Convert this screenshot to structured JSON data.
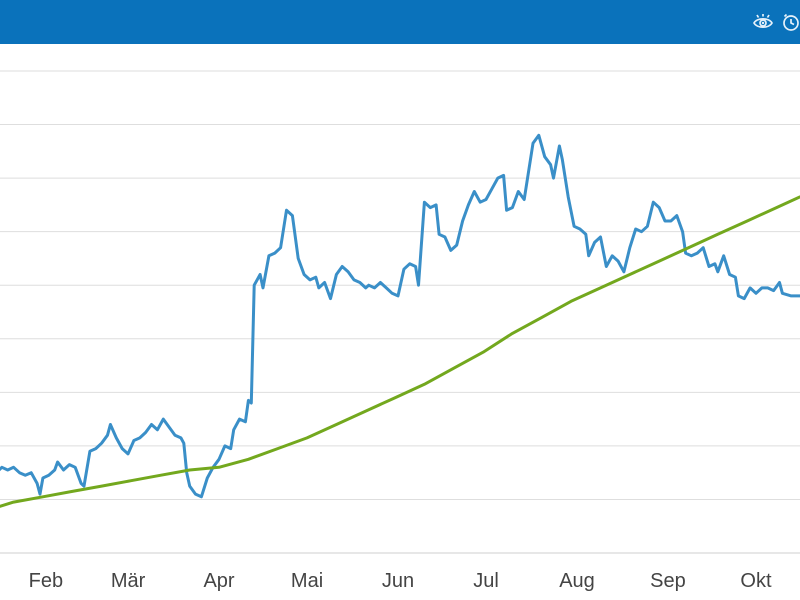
{
  "header": {
    "background": "#0a72bb",
    "icons": [
      "eye-icon",
      "alarm-clock-icon"
    ]
  },
  "chart_data": {
    "type": "line",
    "grid": true,
    "legend": "none",
    "x_tick_labels": [
      "Feb",
      "Mär",
      "Apr",
      "Mai",
      "Jun",
      "Jul",
      "Aug",
      "Sep",
      "Okt"
    ],
    "x_tick_days": [
      31,
      59,
      90,
      120,
      151,
      181,
      212,
      243,
      273
    ],
    "xlim": [
      14,
      288
    ],
    "ylim": [
      0,
      9
    ],
    "series": [
      {
        "color": "#3a8fc8",
        "points": [
          [
            14,
            1.5
          ],
          [
            16,
            1.6
          ],
          [
            18,
            1.55
          ],
          [
            20,
            1.6
          ],
          [
            22,
            1.5
          ],
          [
            24,
            1.45
          ],
          [
            26,
            1.5
          ],
          [
            28,
            1.3
          ],
          [
            29,
            1.1
          ],
          [
            30,
            1.4
          ],
          [
            32,
            1.45
          ],
          [
            34,
            1.55
          ],
          [
            35,
            1.7
          ],
          [
            37,
            1.55
          ],
          [
            39,
            1.65
          ],
          [
            41,
            1.6
          ],
          [
            43,
            1.3
          ],
          [
            44,
            1.25
          ],
          [
            46,
            1.9
          ],
          [
            48,
            1.95
          ],
          [
            50,
            2.05
          ],
          [
            52,
            2.2
          ],
          [
            53,
            2.4
          ],
          [
            55,
            2.15
          ],
          [
            57,
            1.95
          ],
          [
            59,
            1.85
          ],
          [
            61,
            2.1
          ],
          [
            63,
            2.15
          ],
          [
            65,
            2.25
          ],
          [
            67,
            2.4
          ],
          [
            69,
            2.3
          ],
          [
            71,
            2.5
          ],
          [
            73,
            2.35
          ],
          [
            75,
            2.2
          ],
          [
            77,
            2.15
          ],
          [
            78,
            2.05
          ],
          [
            79,
            1.5
          ],
          [
            80,
            1.25
          ],
          [
            82,
            1.1
          ],
          [
            84,
            1.05
          ],
          [
            86,
            1.4
          ],
          [
            88,
            1.6
          ],
          [
            90,
            1.75
          ],
          [
            92,
            2.0
          ],
          [
            94,
            1.95
          ],
          [
            95,
            2.3
          ],
          [
            97,
            2.5
          ],
          [
            99,
            2.45
          ],
          [
            100,
            2.85
          ],
          [
            101,
            2.8
          ],
          [
            102,
            5.0
          ],
          [
            104,
            5.2
          ],
          [
            105,
            4.95
          ],
          [
            107,
            5.55
          ],
          [
            109,
            5.6
          ],
          [
            111,
            5.7
          ],
          [
            113,
            6.4
          ],
          [
            115,
            6.3
          ],
          [
            117,
            5.5
          ],
          [
            119,
            5.2
          ],
          [
            121,
            5.1
          ],
          [
            123,
            5.15
          ],
          [
            124,
            4.95
          ],
          [
            126,
            5.05
          ],
          [
            128,
            4.75
          ],
          [
            130,
            5.2
          ],
          [
            132,
            5.35
          ],
          [
            134,
            5.25
          ],
          [
            136,
            5.1
          ],
          [
            138,
            5.05
          ],
          [
            140,
            4.95
          ],
          [
            141,
            5.0
          ],
          [
            143,
            4.95
          ],
          [
            145,
            5.05
          ],
          [
            147,
            4.95
          ],
          [
            149,
            4.85
          ],
          [
            151,
            4.8
          ],
          [
            153,
            5.3
          ],
          [
            155,
            5.4
          ],
          [
            157,
            5.35
          ],
          [
            158,
            5.0
          ],
          [
            160,
            6.55
          ],
          [
            162,
            6.45
          ],
          [
            164,
            6.5
          ],
          [
            165,
            5.95
          ],
          [
            167,
            5.9
          ],
          [
            169,
            5.65
          ],
          [
            171,
            5.75
          ],
          [
            173,
            6.2
          ],
          [
            175,
            6.5
          ],
          [
            177,
            6.75
          ],
          [
            179,
            6.55
          ],
          [
            181,
            6.6
          ],
          [
            183,
            6.8
          ],
          [
            185,
            7.0
          ],
          [
            187,
            7.05
          ],
          [
            188,
            6.4
          ],
          [
            190,
            6.45
          ],
          [
            192,
            6.75
          ],
          [
            194,
            6.6
          ],
          [
            197,
            7.65
          ],
          [
            199,
            7.8
          ],
          [
            201,
            7.4
          ],
          [
            203,
            7.25
          ],
          [
            204,
            7.0
          ],
          [
            206,
            7.6
          ],
          [
            207,
            7.35
          ],
          [
            209,
            6.65
          ],
          [
            211,
            6.1
          ],
          [
            213,
            6.05
          ],
          [
            215,
            5.95
          ],
          [
            216,
            5.55
          ],
          [
            218,
            5.8
          ],
          [
            220,
            5.9
          ],
          [
            222,
            5.35
          ],
          [
            224,
            5.55
          ],
          [
            226,
            5.45
          ],
          [
            228,
            5.25
          ],
          [
            230,
            5.7
          ],
          [
            232,
            6.05
          ],
          [
            234,
            6.0
          ],
          [
            236,
            6.1
          ],
          [
            238,
            6.55
          ],
          [
            240,
            6.45
          ],
          [
            242,
            6.2
          ],
          [
            244,
            6.2
          ],
          [
            246,
            6.3
          ],
          [
            248,
            6.0
          ],
          [
            249,
            5.6
          ],
          [
            251,
            5.55
          ],
          [
            253,
            5.6
          ],
          [
            255,
            5.7
          ],
          [
            257,
            5.35
          ],
          [
            259,
            5.4
          ],
          [
            260,
            5.25
          ],
          [
            262,
            5.55
          ],
          [
            264,
            5.2
          ],
          [
            266,
            5.15
          ],
          [
            267,
            4.8
          ],
          [
            269,
            4.75
          ],
          [
            271,
            4.95
          ],
          [
            273,
            4.85
          ],
          [
            275,
            4.95
          ],
          [
            277,
            4.95
          ],
          [
            279,
            4.9
          ],
          [
            281,
            5.05
          ],
          [
            282,
            4.85
          ],
          [
            285,
            4.8
          ],
          [
            288,
            4.8
          ]
        ]
      },
      {
        "color": "#73a81e",
        "points": [
          [
            14,
            0.85
          ],
          [
            20,
            0.95
          ],
          [
            30,
            1.05
          ],
          [
            40,
            1.15
          ],
          [
            50,
            1.25
          ],
          [
            60,
            1.35
          ],
          [
            70,
            1.45
          ],
          [
            80,
            1.55
          ],
          [
            90,
            1.6
          ],
          [
            100,
            1.75
          ],
          [
            110,
            1.95
          ],
          [
            120,
            2.15
          ],
          [
            130,
            2.4
          ],
          [
            140,
            2.65
          ],
          [
            150,
            2.9
          ],
          [
            160,
            3.15
          ],
          [
            170,
            3.45
          ],
          [
            180,
            3.75
          ],
          [
            190,
            4.1
          ],
          [
            200,
            4.4
          ],
          [
            210,
            4.7
          ],
          [
            220,
            4.95
          ],
          [
            230,
            5.2
          ],
          [
            240,
            5.45
          ],
          [
            250,
            5.7
          ],
          [
            260,
            5.95
          ],
          [
            270,
            6.2
          ],
          [
            280,
            6.45
          ],
          [
            288,
            6.65
          ]
        ]
      }
    ]
  }
}
